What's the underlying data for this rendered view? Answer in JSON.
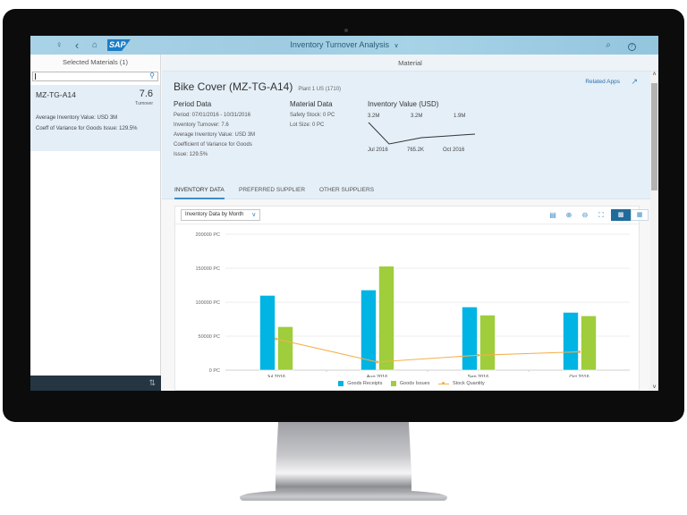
{
  "shell": {
    "title": "Inventory Turnover Analysis",
    "title_chevron": "∨",
    "icons": {
      "user": "♀",
      "back": "‹",
      "home": "⌂",
      "search": "⌕",
      "help": "?"
    },
    "logo": "SAP"
  },
  "master": {
    "header": "Selected Materials (1)",
    "search": {
      "value": "",
      "placeholder": ""
    },
    "items": [
      {
        "id": "MZ-TG-A14",
        "value": "7.6",
        "unit": "Turnover",
        "attr1": "Average Inventory Value: USD 3M",
        "attr2": "Coeff of Variance for Goods Issue: 129.5%"
      }
    ],
    "footer_icon": "⇅"
  },
  "detail": {
    "title": "Material",
    "header": {
      "title": "Bike Cover (MZ-TG-A14)",
      "subtitle": "Plant 1 US (1710)",
      "related_apps": "Related Apps",
      "period": {
        "heading": "Period Data",
        "lines": [
          "Period: 07/01/2016 - 10/31/2016",
          "Inventory Turnover: 7.6",
          "Average Inventory Value: USD 3M",
          "Coefficient of Variance for Goods",
          "Issue: 129.5%"
        ]
      },
      "material": {
        "heading": "Material Data",
        "lines": [
          "Safety Stock: 0 PC",
          "Lot Size: 0 PC"
        ]
      },
      "inventory_value": {
        "heading": "Inventory Value (USD)",
        "values": [
          "3.2M",
          "3.2M",
          "1.9M"
        ],
        "low_label": "765.2K",
        "start": "Jul 2016",
        "end": "Oct 2016"
      }
    },
    "tabs": [
      {
        "label": "INVENTORY DATA",
        "active": true
      },
      {
        "label": "PREFERRED SUPPLIER",
        "active": false
      },
      {
        "label": "OTHER SUPPLIERS",
        "active": false
      }
    ],
    "chart_toolbar": {
      "select": "Inventory Data by Month",
      "icons": [
        "legend-icon",
        "zoom-in-icon",
        "zoom-out-icon",
        "fullscreen-icon",
        "chart-view-icon",
        "table-view-icon"
      ]
    }
  },
  "chart_data": {
    "type": "bar",
    "title": "Inventory Data by Month",
    "categories": [
      "Jul 2016",
      "Aug 2016",
      "Sep 2016",
      "Oct 2016"
    ],
    "series": [
      {
        "name": "Goods Receipts",
        "type": "bar",
        "color": "#00b4e4",
        "values": [
          110000,
          118000,
          93000,
          85000
        ]
      },
      {
        "name": "Goods Issues",
        "type": "bar",
        "color": "#9fcd3c",
        "values": [
          64000,
          153000,
          81000,
          80000
        ]
      },
      {
        "name": "Stock Quantity",
        "type": "line",
        "color": "#f5b04c",
        "values": [
          46000,
          12000,
          22000,
          27000
        ]
      }
    ],
    "yticks": [
      "0 PC",
      "50000 PC",
      "100000 PC",
      "150000 PC",
      "200000 PC"
    ],
    "ylim": [
      0,
      200000
    ],
    "xlabel": "",
    "ylabel": "",
    "grid": true,
    "legend_position": "bottom"
  },
  "colors": {
    "shell": "#a9d2e6",
    "accent": "#1f6c9c",
    "receipts": "#00b4e4",
    "issues": "#9fcd3c",
    "stock": "#f5b04c"
  }
}
